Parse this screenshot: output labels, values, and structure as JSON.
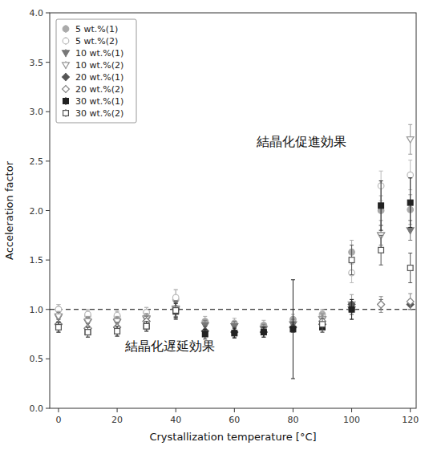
{
  "chart_data": {
    "type": "scatter",
    "xlabel": "Crystallization temperature [°C]",
    "ylabel": "Acceleration factor",
    "xlim": [
      -3,
      122
    ],
    "ylim": [
      0,
      4.0
    ],
    "xticks": [
      0,
      20,
      40,
      60,
      80,
      100,
      120
    ],
    "yticks": [
      {
        "value": 0,
        "label": "0.0"
      },
      0.5,
      {
        "value": 1.0,
        "label": "1.0"
      },
      1.5,
      {
        "value": 2.0,
        "label": "2.0"
      },
      2.5,
      {
        "value": 3.0,
        "label": "3.0"
      },
      3.5,
      {
        "value": 4.0,
        "label": "4.0"
      }
    ],
    "grid": false,
    "legend": "upper left",
    "reference_line": {
      "y": 1.0,
      "line_style": "dashed"
    },
    "annotations": [
      {
        "text": "結晶化促進効果",
        "x": 83,
        "y": 2.7
      },
      {
        "text": "結晶化遅延効果",
        "x": 38,
        "y": 0.63
      }
    ],
    "series": [
      {
        "name": "5 wt.%(1)",
        "color": "#aaaaaa",
        "marker": "circle",
        "x": [
          0,
          10,
          20,
          30,
          40,
          50,
          60,
          70,
          80,
          90,
          100,
          110,
          120
        ],
        "values": [
          1.0,
          0.94,
          0.93,
          0.97,
          1.1,
          0.88,
          0.86,
          0.84,
          0.9,
          0.95,
          1.58,
          2.0,
          2.01
        ],
        "errors": [
          0.05,
          0.05,
          0.05,
          0.05,
          0.1,
          0.05,
          0.05,
          0.05,
          0.05,
          0.05,
          0.12,
          0.15,
          0.15
        ]
      },
      {
        "name": "5 wt.%(2)",
        "color": "#bbbbbb",
        "marker": "circle-open",
        "x": [
          0,
          10,
          20,
          30,
          40,
          90,
          100,
          110,
          120
        ],
        "values": [
          1.0,
          0.95,
          0.94,
          0.97,
          1.12,
          0.93,
          1.37,
          2.25,
          2.36
        ],
        "errors": [
          0.05,
          0.05,
          0.05,
          0.05,
          0.08,
          0.06,
          0.1,
          0.15,
          0.15
        ]
      },
      {
        "name": "10 wt.%(1)",
        "color": "#777777",
        "marker": "triangle-down",
        "x": [
          0,
          10,
          20,
          30,
          40,
          50,
          60,
          70,
          80,
          90,
          100,
          110,
          120
        ],
        "values": [
          0.92,
          0.87,
          0.87,
          0.9,
          1.0,
          0.84,
          0.83,
          0.8,
          0.85,
          0.9,
          1.0,
          1.75,
          1.8
        ],
        "errors": [
          0.05,
          0.05,
          0.05,
          0.05,
          0.08,
          0.05,
          0.05,
          0.05,
          0.05,
          0.05,
          0.05,
          0.1,
          0.1
        ]
      },
      {
        "name": "10 wt.%(2)",
        "color": "#999999",
        "marker": "triangle-down-open",
        "x": [
          0,
          10,
          20,
          30,
          40,
          90,
          100,
          110,
          120
        ],
        "values": [
          0.93,
          0.88,
          0.88,
          0.91,
          1.01,
          0.9,
          1.05,
          1.75,
          2.72
        ],
        "errors": [
          0.05,
          0.05,
          0.05,
          0.05,
          0.08,
          0.06,
          0.1,
          0.15,
          0.15
        ]
      },
      {
        "name": "20 wt.%(1)",
        "color": "#555555",
        "marker": "diamond",
        "x": [
          0,
          10,
          20,
          30,
          40,
          50,
          60,
          70,
          80,
          90,
          100,
          110,
          120
        ],
        "values": [
          0.85,
          0.81,
          0.82,
          0.88,
          1.0,
          0.78,
          0.77,
          0.77,
          0.82,
          0.85,
          1.05,
          1.05,
          1.05
        ],
        "errors": [
          0.05,
          0.05,
          0.05,
          0.05,
          0.08,
          0.05,
          0.05,
          0.05,
          0.05,
          0.05,
          0.05,
          0.05,
          0.05
        ]
      },
      {
        "name": "20 wt.%(2)",
        "color": "#888888",
        "marker": "diamond-open",
        "x": [
          0,
          10,
          20,
          30,
          40,
          90,
          100,
          110,
          120
        ],
        "values": [
          0.85,
          0.81,
          0.82,
          0.88,
          1.01,
          0.88,
          1.0,
          1.05,
          1.08
        ],
        "errors": [
          0.05,
          0.05,
          0.05,
          0.05,
          0.08,
          0.06,
          0.1,
          0.08,
          0.08
        ]
      },
      {
        "name": "30 wt.%(1)",
        "color": "#222222",
        "marker": "square",
        "x": [
          0,
          10,
          20,
          30,
          40,
          50,
          60,
          70,
          80,
          90,
          100,
          110,
          120
        ],
        "values": [
          0.82,
          0.77,
          0.78,
          0.83,
          0.98,
          0.75,
          0.76,
          0.77,
          0.8,
          0.82,
          1.0,
          2.05,
          2.08
        ],
        "errors": [
          0.05,
          0.05,
          0.05,
          0.05,
          0.08,
          0.05,
          0.05,
          0.05,
          0.5,
          0.05,
          0.1,
          0.25,
          0.25
        ]
      },
      {
        "name": "30 wt.%(2)",
        "color": "#555555",
        "marker": "square-open",
        "x": [
          0,
          10,
          20,
          30,
          40,
          90,
          100,
          110,
          120
        ],
        "values": [
          0.82,
          0.77,
          0.78,
          0.83,
          0.99,
          0.85,
          1.5,
          1.6,
          1.42
        ],
        "errors": [
          0.05,
          0.05,
          0.05,
          0.05,
          0.08,
          0.06,
          0.15,
          0.15,
          0.15
        ]
      }
    ]
  }
}
